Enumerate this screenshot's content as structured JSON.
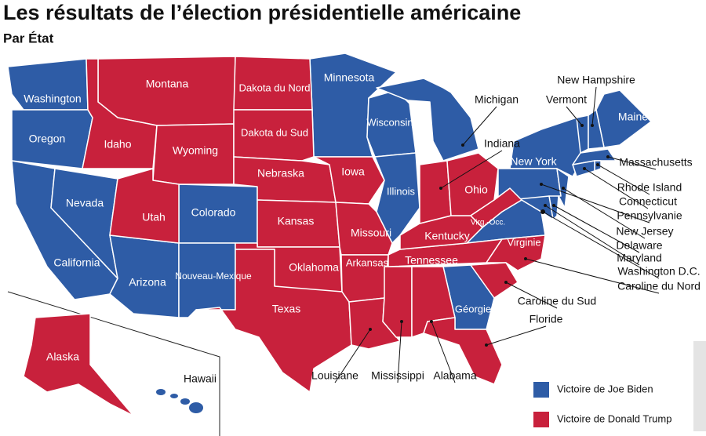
{
  "title": "Les résultats de l’élection présidentielle américaine",
  "subtitle": "Par État",
  "legend": [
    {
      "label": "Victoire de Joe Biden",
      "color": "#2e5ca6",
      "states": [
        "Washington",
        "Oregon",
        "California",
        "Nevada",
        "Arizona",
        "Colorado",
        "Nouveau-Mexique",
        "Minnesota",
        "Wisconsin",
        "Michigan",
        "Illinois",
        "Virginie",
        "New York",
        "Pennsylvanie",
        "Maine",
        "Vermont",
        "New Hampshire",
        "Massachusetts",
        "Rhode Island",
        "Connecticut",
        "New Jersey",
        "Delaware",
        "Maryland",
        "Washington D.C.",
        "Géorgie",
        "Hawaii"
      ]
    },
    {
      "label": "Victoire de Donald Trump",
      "color": "#c8213c",
      "states": [
        "Montana",
        "Idaho",
        "Wyoming",
        "Utah",
        "Dakota du Nord",
        "Dakota du Sud",
        "Nebraska",
        "Kansas",
        "Oklahoma",
        "Texas",
        "Iowa",
        "Missouri",
        "Arkansas",
        "Louisiane",
        "Mississippi",
        "Alabama",
        "Tennessee",
        "Kentucky",
        "Indiana",
        "Ohio",
        "Virg.-Occ.",
        "Caroline du Nord",
        "Caroline du Sud",
        "Floride",
        "Alaska"
      ]
    }
  ]
}
